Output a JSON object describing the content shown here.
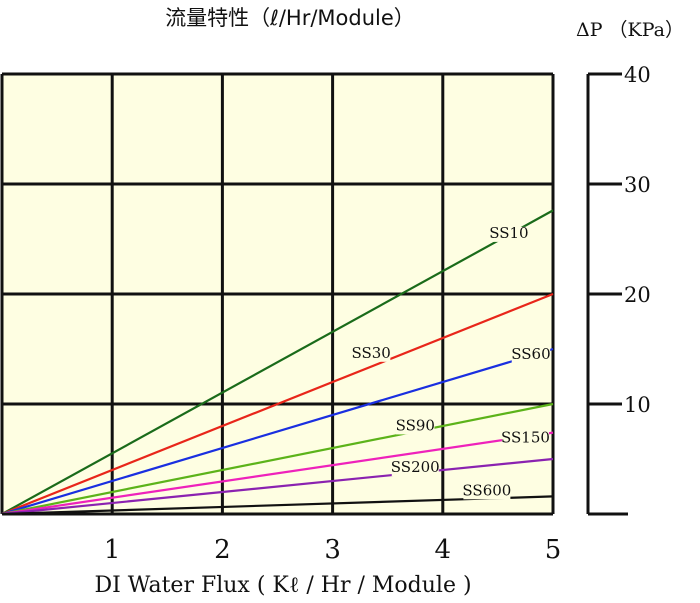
{
  "chart_data": {
    "type": "line",
    "title": "流量特性（ℓ/Hr/Module）",
    "xlabel": "DI Water Flux ( Kℓ / Hr / Module )",
    "ylabel": "ΔP （KPa）",
    "x_ticks": [
      "1",
      "2",
      "3",
      "4",
      "5"
    ],
    "y_ticks": [
      "10",
      "20",
      "30",
      "40"
    ],
    "xlim": [
      0,
      5
    ],
    "ylim": [
      0,
      40
    ],
    "grid": true,
    "series": [
      {
        "name": "SS10",
        "color": "#1a6b1a",
        "x": [
          0,
          5
        ],
        "y": [
          0,
          27.6
        ]
      },
      {
        "name": "SS30",
        "color": "#e8261a",
        "x": [
          0,
          5
        ],
        "y": [
          0,
          20.0
        ]
      },
      {
        "name": "SS60",
        "color": "#1a2fe0",
        "x": [
          0,
          5
        ],
        "y": [
          0,
          15.0
        ]
      },
      {
        "name": "SS90",
        "color": "#5cb31a",
        "x": [
          0,
          5
        ],
        "y": [
          0,
          10.0
        ]
      },
      {
        "name": "SS150",
        "color": "#ee22bb",
        "x": [
          0,
          5
        ],
        "y": [
          0,
          7.4
        ]
      },
      {
        "name": "SS200",
        "color": "#8a22b0",
        "x": [
          0,
          5
        ],
        "y": [
          0,
          5.0
        ]
      },
      {
        "name": "SS600",
        "color": "#111111",
        "x": [
          0,
          5
        ],
        "y": [
          0,
          1.6
        ]
      }
    ],
    "labels": [
      {
        "series": "SS10",
        "text": "SS10",
        "x": 4.6,
        "y": 25.1
      },
      {
        "series": "SS30",
        "text": "SS30",
        "x": 3.35,
        "y": 14.2
      },
      {
        "series": "SS60",
        "text": "SS60",
        "x": 4.8,
        "y": 14.1
      },
      {
        "series": "SS90",
        "text": "SS90",
        "x": 3.75,
        "y": 7.6
      },
      {
        "series": "SS150",
        "text": "SS150",
        "x": 4.75,
        "y": 6.5
      },
      {
        "series": "SS200",
        "text": "SS200",
        "x": 3.75,
        "y": 3.8
      },
      {
        "series": "SS600",
        "text": "SS600",
        "x": 4.4,
        "y": 1.7
      }
    ]
  }
}
